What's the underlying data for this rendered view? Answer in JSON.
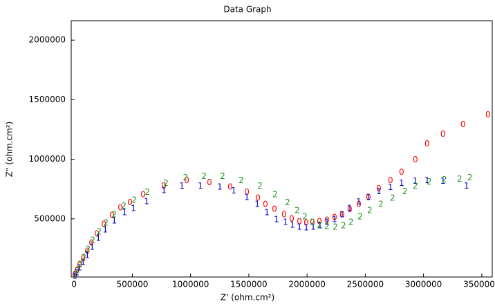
{
  "chart_data": {
    "type": "scatter",
    "title": "Data Graph",
    "x_label": "Z' (ohm.cm²)",
    "y_label": "Z\" (ohm.cm²)",
    "xlim": [
      -25000,
      3590000
    ],
    "ylim": [
      12000,
      2163000
    ],
    "xticks": [
      0,
      500000,
      1000000,
      1500000,
      2000000,
      2500000,
      3000000,
      3500000
    ],
    "yticks": [
      500000,
      1000000,
      1500000,
      2000000
    ],
    "series": [
      {
        "marker": "0",
        "color": "#ff0000",
        "x": [
          6000,
          24000,
          47000,
          77000,
          113000,
          148000,
          196000,
          255000,
          326000,
          397000,
          480000,
          593000,
          771000,
          967000,
          1162000,
          1340000,
          1483000,
          1578000,
          1643000,
          1720000,
          1803000,
          1868000,
          1934000,
          1993000,
          2046000,
          2106000,
          2171000,
          2236000,
          2301000,
          2366000,
          2444000,
          2527000,
          2616000,
          2716000,
          2811000,
          2930000,
          3031000,
          3167000,
          3339000,
          3553000
        ],
        "values": [
          29000,
          64000,
          110000,
          163000,
          227000,
          297000,
          372000,
          453000,
          529000,
          593000,
          634000,
          703000,
          773000,
          820000,
          802000,
          767000,
          721000,
          674000,
          622000,
          581000,
          535000,
          500000,
          477000,
          465000,
          471000,
          477000,
          488000,
          512000,
          535000,
          576000,
          622000,
          680000,
          750000,
          820000,
          890000,
          994000,
          1128000,
          1209000,
          1291000,
          1372000
        ]
      },
      {
        "marker": "1",
        "color": "#0000cc",
        "x": [
          6000,
          24000,
          47000,
          77000,
          113000,
          154000,
          208000,
          267000,
          344000,
          433000,
          510000,
          623000,
          771000,
          925000,
          1085000,
          1251000,
          1370000,
          1483000,
          1572000,
          1655000,
          1738000,
          1815000,
          1874000,
          1934000,
          1993000,
          2052000,
          2111000,
          2171000,
          2236000,
          2301000,
          2366000,
          2444000,
          2527000,
          2616000,
          2716000,
          2811000,
          2930000,
          3031000,
          3167000,
          3369000
        ],
        "values": [
          17000,
          47000,
          87000,
          134000,
          192000,
          262000,
          337000,
          407000,
          483000,
          552000,
          587000,
          645000,
          738000,
          773000,
          773000,
          767000,
          733000,
          680000,
          622000,
          552000,
          494000,
          471000,
          448000,
          430000,
          424000,
          430000,
          442000,
          471000,
          494000,
          535000,
          587000,
          640000,
          680000,
          727000,
          762000,
          797000,
          814000,
          820000,
          814000,
          773000
        ]
      },
      {
        "marker": "2",
        "color": "#1f961f",
        "x": [
          12000,
          30000,
          53000,
          83000,
          119000,
          160000,
          214000,
          273000,
          344000,
          427000,
          516000,
          629000,
          789000,
          956000,
          1115000,
          1275000,
          1435000,
          1595000,
          1726000,
          1833000,
          1916000,
          1981000,
          2046000,
          2106000,
          2171000,
          2242000,
          2313000,
          2378000,
          2455000,
          2538000,
          2633000,
          2734000,
          2841000,
          2930000,
          3049000,
          3179000,
          3309000,
          3398000
        ],
        "values": [
          35000,
          70000,
          116000,
          174000,
          244000,
          320000,
          390000,
          465000,
          535000,
          605000,
          657000,
          721000,
          797000,
          843000,
          855000,
          855000,
          820000,
          773000,
          703000,
          634000,
          570000,
          517000,
          471000,
          448000,
          436000,
          430000,
          442000,
          471000,
          517000,
          570000,
          622000,
          674000,
          727000,
          773000,
          808000,
          826000,
          831000,
          843000
        ]
      }
    ]
  }
}
